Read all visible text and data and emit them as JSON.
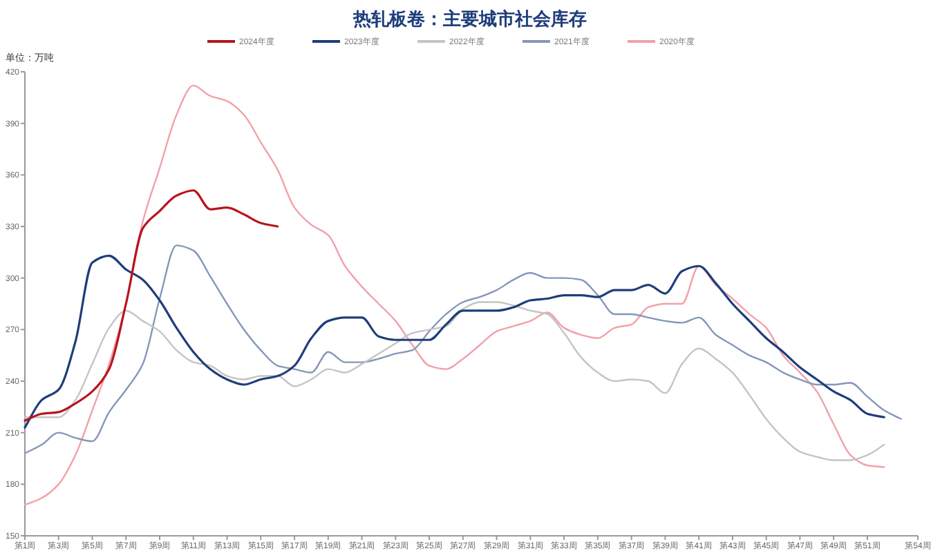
{
  "chart_data": {
    "type": "line",
    "title": "热轧板卷：主要城市社会库存",
    "ylabel": "单位：万吨",
    "legend": "top",
    "categories": [
      "第1周",
      null,
      "第3周",
      null,
      "第5周",
      null,
      "第7周",
      null,
      "第9周",
      null,
      "第11周",
      null,
      "第13周",
      null,
      "第15周",
      null,
      "第17周",
      null,
      "第19周",
      null,
      "第21周",
      null,
      "第23周",
      null,
      "第25周",
      null,
      "第27周",
      null,
      "第29周",
      null,
      "第31周",
      null,
      "第33周",
      null,
      "第35周",
      null,
      "第37周",
      null,
      "第39周",
      null,
      "第41周",
      null,
      "第43周",
      null,
      "第45周",
      null,
      "第47周",
      null,
      "第49周",
      null,
      "第51周",
      null,
      null,
      "第54周"
    ],
    "ylim": [
      150,
      420
    ],
    "yticks": [
      150,
      180,
      210,
      240,
      270,
      300,
      330,
      360,
      390,
      420
    ],
    "series": [
      {
        "name": "2024年度",
        "color": "#b8141e",
        "values": [
          217,
          221,
          222,
          227,
          234,
          247,
          285,
          329,
          339,
          348,
          351,
          340,
          341,
          337,
          332,
          330,
          null,
          null,
          null,
          null,
          null,
          null,
          null,
          null,
          null,
          null,
          null,
          null,
          null,
          null,
          null,
          null,
          null,
          null,
          null,
          null,
          null,
          null,
          null,
          null,
          null,
          null,
          null,
          null,
          null,
          null,
          null,
          null,
          null,
          null,
          null,
          null,
          null,
          null
        ]
      },
      {
        "name": "2023年度",
        "color": "#1f3d7a",
        "values": [
          213,
          229,
          235,
          263,
          309,
          313,
          305,
          299,
          287,
          271,
          257,
          247,
          241,
          238,
          241,
          243,
          249,
          265,
          275,
          277,
          277,
          266,
          264,
          264,
          264,
          273,
          281,
          281,
          281,
          283,
          287,
          288,
          290,
          290,
          289,
          293,
          293,
          296,
          291,
          304,
          307,
          297,
          285,
          275,
          265,
          257,
          248,
          241,
          234,
          229,
          221,
          219,
          null,
          null
        ]
      },
      {
        "name": "2022年度",
        "color": "#c4c4c4",
        "values": [
          219,
          219,
          219,
          229,
          250,
          271,
          281,
          275,
          269,
          258,
          251,
          249,
          243,
          241,
          243,
          243,
          237,
          241,
          247,
          245,
          250,
          256,
          262,
          268,
          270,
          272,
          282,
          286,
          286,
          284,
          281,
          279,
          268,
          254,
          245,
          240,
          241,
          240,
          233,
          250,
          259,
          253,
          245,
          232,
          218,
          207,
          199,
          196,
          194,
          194,
          197,
          203,
          null,
          null
        ]
      },
      {
        "name": "2021年度",
        "color": "#8497b8",
        "values": [
          198,
          203,
          210,
          207,
          205,
          222,
          235,
          250,
          288,
          319,
          316,
          301,
          285,
          270,
          258,
          249,
          247,
          245,
          257,
          251,
          251,
          253,
          256,
          258,
          269,
          279,
          286,
          289,
          293,
          299,
          303,
          300,
          300,
          299,
          290,
          279,
          279,
          277,
          275,
          274,
          277,
          267,
          261,
          255,
          251,
          245,
          241,
          238,
          238,
          239,
          231,
          223,
          218,
          null
        ]
      },
      {
        "name": "2020年度",
        "color": "#f2a0a8",
        "values": [
          168,
          172,
          180,
          197,
          223,
          250,
          285,
          333,
          364,
          395,
          412,
          406,
          403,
          395,
          379,
          363,
          341,
          331,
          325,
          307,
          295,
          285,
          275,
          261,
          249,
          247,
          253,
          261,
          269,
          272,
          275,
          280,
          271,
          267,
          265,
          271,
          273,
          283,
          285,
          285,
          307,
          296,
          288,
          279,
          271,
          255,
          245,
          234,
          215,
          197,
          191,
          190,
          null,
          null
        ]
      }
    ]
  }
}
